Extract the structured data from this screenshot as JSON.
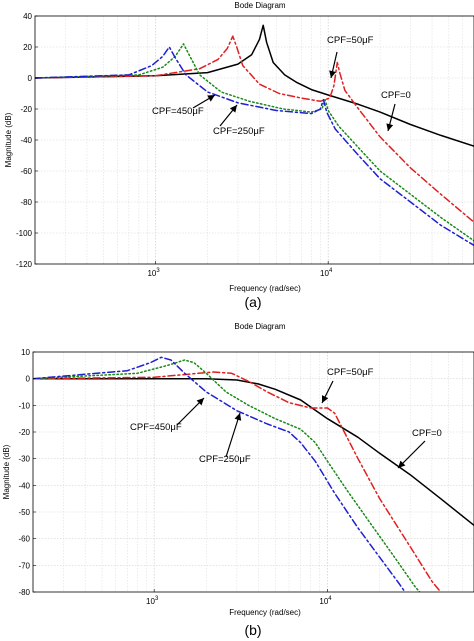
{
  "chart_data": [
    {
      "type": "line",
      "title": "Bode Diagram",
      "xlabel": "Frequency (rad/sec)",
      "ylabel": "Magnitude (dB)",
      "caption": "(a)",
      "xscale": "log",
      "xlim": [
        200,
        70000
      ],
      "ylim": [
        -120,
        40
      ],
      "yticks": [
        40,
        20,
        0,
        -20,
        -40,
        -60,
        -80,
        -100,
        -120
      ],
      "xticks": [
        {
          "value": 1000,
          "base": "10",
          "exp": "3"
        },
        {
          "value": 10000,
          "base": "10",
          "exp": "4"
        }
      ],
      "grid": true,
      "series": [
        {
          "name": "CPF=0",
          "color": "#000000",
          "dash": "",
          "points": [
            [
              200,
              0
            ],
            [
              1000,
              1.5
            ],
            [
              2000,
              3.5
            ],
            [
              3000,
              9
            ],
            [
              3600,
              15
            ],
            [
              4000,
              25
            ],
            [
              4200,
              34
            ],
            [
              4400,
              23
            ],
            [
              4800,
              10
            ],
            [
              5600,
              2
            ],
            [
              6600,
              -3
            ],
            [
              8000,
              -7.5
            ],
            [
              10000,
              -11
            ],
            [
              15000,
              -17
            ],
            [
              20000,
              -22
            ],
            [
              30000,
              -30
            ],
            [
              45000,
              -37
            ],
            [
              70000,
              -44
            ]
          ]
        },
        {
          "name": "CPF=50μF",
          "color": "#e02020",
          "dash": "7 3 2 3",
          "points": [
            [
              200,
              0
            ],
            [
              1000,
              1.5
            ],
            [
              1800,
              6
            ],
            [
              2300,
              12
            ],
            [
              2600,
              19
            ],
            [
              2800,
              27
            ],
            [
              2950,
              20
            ],
            [
              3200,
              8
            ],
            [
              4000,
              -4
            ],
            [
              5200,
              -10
            ],
            [
              7000,
              -13
            ],
            [
              9000,
              -15
            ],
            [
              10200,
              -13
            ],
            [
              10800,
              -5
            ],
            [
              11300,
              10
            ],
            [
              11700,
              3
            ],
            [
              12500,
              -8
            ],
            [
              15000,
              -20
            ],
            [
              20000,
              -38
            ],
            [
              30000,
              -58
            ],
            [
              45000,
              -75
            ],
            [
              70000,
              -93
            ]
          ]
        },
        {
          "name": "CPF=250μF",
          "color": "#1a8a1a",
          "dash": "1.5 2.5",
          "points": [
            [
              200,
              0
            ],
            [
              800,
              2
            ],
            [
              1100,
              7
            ],
            [
              1300,
              14
            ],
            [
              1450,
              22
            ],
            [
              1580,
              14
            ],
            [
              1800,
              2
            ],
            [
              2400,
              -9
            ],
            [
              3500,
              -15
            ],
            [
              5500,
              -20
            ],
            [
              8000,
              -22
            ],
            [
              9200,
              -20
            ],
            [
              9600,
              -14
            ],
            [
              10000,
              -21
            ],
            [
              11500,
              -31
            ],
            [
              15000,
              -45
            ],
            [
              20000,
              -60
            ],
            [
              30000,
              -75
            ],
            [
              45000,
              -90
            ],
            [
              70000,
              -105
            ]
          ]
        },
        {
          "name": "CPF=450μF",
          "color": "#2020d0",
          "dash": "7 3 2 3",
          "points": [
            [
              200,
              0
            ],
            [
              700,
              2
            ],
            [
              950,
              8
            ],
            [
              1100,
              14
            ],
            [
              1200,
              20
            ],
            [
              1300,
              13
            ],
            [
              1500,
              2
            ],
            [
              2000,
              -9
            ],
            [
              3000,
              -16
            ],
            [
              5000,
              -21
            ],
            [
              8000,
              -23
            ],
            [
              9000,
              -20
            ],
            [
              9400,
              -14
            ],
            [
              9800,
              -22
            ],
            [
              11000,
              -33
            ],
            [
              15000,
              -50
            ],
            [
              20000,
              -65
            ],
            [
              30000,
              -80
            ],
            [
              45000,
              -95
            ],
            [
              70000,
              -108
            ]
          ]
        }
      ],
      "annotations": [
        {
          "text": "CPF=50μF",
          "target": [
            11000,
            9
          ]
        },
        {
          "text": "CPF=0",
          "target": [
            22000,
            -32
          ]
        },
        {
          "text": "CPF=450μF",
          "target": [
            2600,
            -12
          ]
        },
        {
          "text": "CPF=250μF",
          "target": [
            3400,
            -22
          ]
        }
      ]
    },
    {
      "type": "line",
      "title": "Bode Diagram",
      "xlabel": "Frequency (rad/sec)",
      "ylabel": "Magnitude (dB)",
      "caption": "(b)",
      "xscale": "log",
      "xlim": [
        200,
        70000
      ],
      "ylim": [
        -80,
        10
      ],
      "yticks": [
        10,
        0,
        -10,
        -20,
        -30,
        -40,
        -50,
        -60,
        -70,
        -80
      ],
      "xticks": [
        {
          "value": 1000,
          "base": "10",
          "exp": "3"
        },
        {
          "value": 10000,
          "base": "10",
          "exp": "4"
        }
      ],
      "grid": true,
      "series": [
        {
          "name": "CPF=0",
          "color": "#000000",
          "dash": "",
          "points": [
            [
              200,
              0
            ],
            [
              2000,
              0
            ],
            [
              3000,
              -0.5
            ],
            [
              4000,
              -2
            ],
            [
              5000,
              -4
            ],
            [
              7000,
              -8
            ],
            [
              10000,
              -15
            ],
            [
              15000,
              -22
            ],
            [
              20000,
              -28
            ],
            [
              30000,
              -36
            ],
            [
              45000,
              -45
            ],
            [
              70000,
              -55
            ]
          ]
        },
        {
          "name": "CPF=50μF",
          "color": "#e02020",
          "dash": "7 3 2 3",
          "points": [
            [
              200,
              0
            ],
            [
              1000,
              0.5
            ],
            [
              1800,
              2
            ],
            [
              2200,
              2.5
            ],
            [
              2800,
              2
            ],
            [
              3500,
              -1
            ],
            [
              4500,
              -5
            ],
            [
              6000,
              -9
            ],
            [
              8000,
              -11
            ],
            [
              10000,
              -11
            ],
            [
              11000,
              -13
            ],
            [
              12500,
              -20
            ],
            [
              15000,
              -30
            ],
            [
              20000,
              -45
            ],
            [
              30000,
              -63
            ],
            [
              40000,
              -76
            ],
            [
              45000,
              -80
            ]
          ]
        },
        {
          "name": "CPF=250μF",
          "color": "#1a8a1a",
          "dash": "1.5 2.5",
          "points": [
            [
              200,
              0
            ],
            [
              800,
              2
            ],
            [
              1200,
              5
            ],
            [
              1500,
              7
            ],
            [
              1700,
              6
            ],
            [
              2000,
              2
            ],
            [
              2600,
              -5
            ],
            [
              3500,
              -10
            ],
            [
              5000,
              -15
            ],
            [
              7000,
              -19
            ],
            [
              8500,
              -24
            ],
            [
              10000,
              -31
            ],
            [
              13000,
              -42
            ],
            [
              18000,
              -55
            ],
            [
              25000,
              -68
            ],
            [
              32000,
              -78
            ],
            [
              34000,
              -80
            ]
          ]
        },
        {
          "name": "CPF=450μF",
          "color": "#2020d0",
          "dash": "7 3 2 3",
          "points": [
            [
              200,
              0
            ],
            [
              700,
              3
            ],
            [
              950,
              6
            ],
            [
              1100,
              8
            ],
            [
              1250,
              7
            ],
            [
              1500,
              2
            ],
            [
              2000,
              -5
            ],
            [
              3000,
              -12
            ],
            [
              4500,
              -17
            ],
            [
              6000,
              -20
            ],
            [
              7000,
              -24
            ],
            [
              8500,
              -31
            ],
            [
              11000,
              -43
            ],
            [
              15000,
              -56
            ],
            [
              20000,
              -67
            ],
            [
              26000,
              -77
            ],
            [
              28000,
              -80
            ]
          ]
        }
      ],
      "annotations": [
        {
          "text": "CPF=50μF",
          "target": [
            9300,
            -11
          ]
        },
        {
          "text": "CPF=0",
          "target": [
            24000,
            -32
          ]
        },
        {
          "text": "CPF=450μF",
          "target": [
            2800,
            -7
          ]
        },
        {
          "text": "CPF=250μF",
          "target": [
            3400,
            -12
          ]
        }
      ]
    }
  ]
}
